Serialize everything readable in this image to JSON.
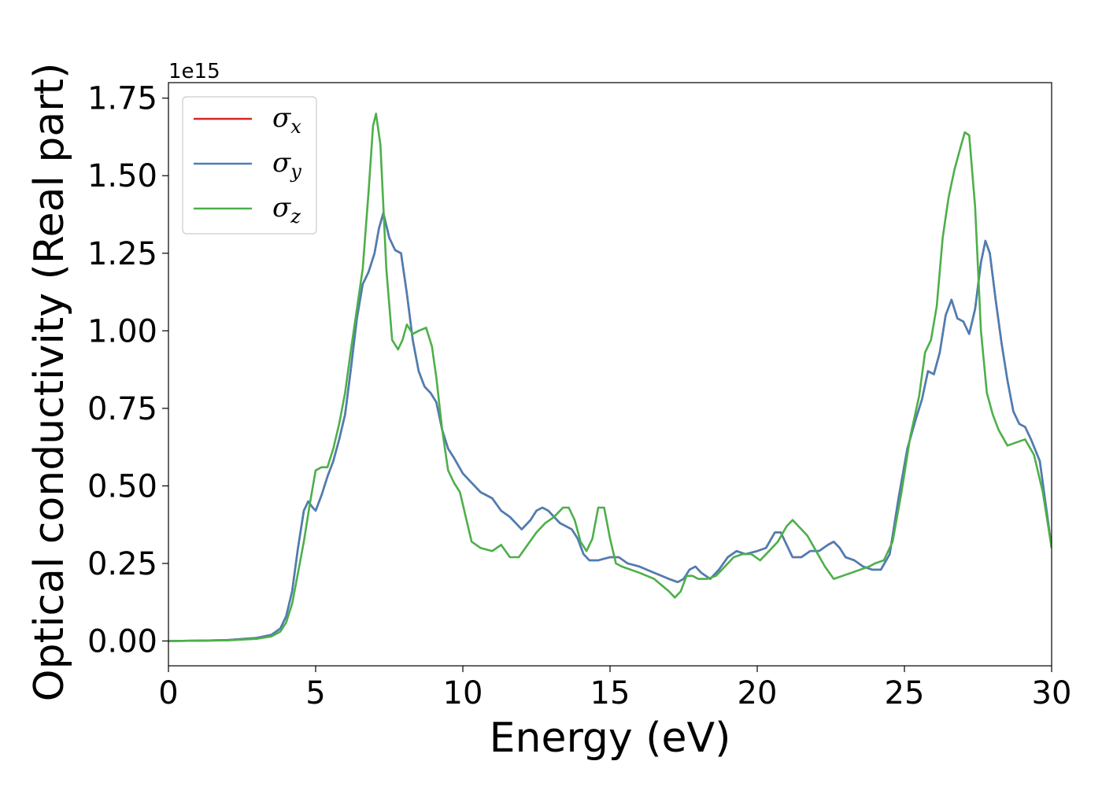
{
  "chart_data": {
    "type": "line",
    "xlabel": "Energy (eV)",
    "ylabel": "Optical conductivity (Real part)",
    "y_offset_text": "1e15",
    "y_scale": 1000000000000000.0,
    "xlim": [
      0,
      30
    ],
    "ylim": [
      -0.08,
      1.8
    ],
    "x_ticks": [
      0,
      5,
      10,
      15,
      20,
      25,
      30
    ],
    "x_tick_labels": [
      "0",
      "5",
      "10",
      "15",
      "20",
      "25",
      "30"
    ],
    "y_ticks": [
      0,
      0.25,
      0.5,
      0.75,
      1.0,
      1.25,
      1.5,
      1.75
    ],
    "y_tick_labels": [
      "0.00",
      "0.25",
      "0.50",
      "0.75",
      "1.00",
      "1.25",
      "1.50",
      "1.75"
    ],
    "grid": false,
    "legend_position": "top-left",
    "series": [
      {
        "name": "σx",
        "legend_base": "σ",
        "legend_sub": "x",
        "color": "#d62728",
        "x": [
          0,
          1,
          2,
          3,
          3.5,
          3.8,
          4.0,
          4.2,
          4.4,
          4.6,
          4.75,
          4.9,
          5.0,
          5.2,
          5.4,
          5.6,
          5.8,
          6.0,
          6.2,
          6.4,
          6.6,
          6.8,
          7.0,
          7.15,
          7.3,
          7.5,
          7.7,
          7.9,
          8.1,
          8.3,
          8.5,
          8.7,
          8.9,
          9.1,
          9.3,
          9.5,
          9.7,
          10.0,
          10.3,
          10.6,
          11.0,
          11.3,
          11.6,
          12.0,
          12.3,
          12.5,
          12.7,
          12.9,
          13.1,
          13.3,
          13.5,
          13.7,
          13.9,
          14.1,
          14.3,
          14.6,
          15.0,
          15.3,
          15.6,
          16.0,
          16.5,
          17.0,
          17.3,
          17.5,
          17.7,
          17.9,
          18.1,
          18.4,
          18.7,
          19.0,
          19.3,
          19.6,
          20.0,
          20.3,
          20.6,
          20.8,
          21.0,
          21.2,
          21.5,
          21.8,
          22.1,
          22.4,
          22.6,
          22.8,
          23.0,
          23.3,
          23.6,
          23.9,
          24.2,
          24.5,
          24.8,
          25.1,
          25.4,
          25.6,
          25.8,
          26.0,
          26.2,
          26.4,
          26.6,
          26.8,
          27.0,
          27.2,
          27.4,
          27.6,
          27.75,
          27.9,
          28.1,
          28.3,
          28.5,
          28.7,
          28.9,
          29.1,
          29.3,
          29.6,
          30.0
        ],
        "y": [
          0,
          0.001,
          0.003,
          0.01,
          0.02,
          0.04,
          0.08,
          0.16,
          0.3,
          0.42,
          0.45,
          0.43,
          0.42,
          0.47,
          0.53,
          0.58,
          0.65,
          0.73,
          0.88,
          1.04,
          1.15,
          1.19,
          1.25,
          1.33,
          1.38,
          1.3,
          1.26,
          1.25,
          1.12,
          0.97,
          0.87,
          0.82,
          0.8,
          0.77,
          0.68,
          0.62,
          0.59,
          0.54,
          0.51,
          0.48,
          0.46,
          0.42,
          0.4,
          0.36,
          0.39,
          0.42,
          0.43,
          0.42,
          0.4,
          0.38,
          0.37,
          0.36,
          0.33,
          0.28,
          0.26,
          0.26,
          0.27,
          0.27,
          0.25,
          0.24,
          0.22,
          0.2,
          0.19,
          0.2,
          0.23,
          0.24,
          0.22,
          0.2,
          0.23,
          0.27,
          0.29,
          0.28,
          0.29,
          0.3,
          0.35,
          0.35,
          0.31,
          0.27,
          0.27,
          0.29,
          0.29,
          0.31,
          0.32,
          0.3,
          0.27,
          0.26,
          0.24,
          0.23,
          0.23,
          0.28,
          0.46,
          0.62,
          0.72,
          0.78,
          0.87,
          0.86,
          0.93,
          1.05,
          1.1,
          1.04,
          1.03,
          0.99,
          1.07,
          1.22,
          1.29,
          1.25,
          1.1,
          0.96,
          0.84,
          0.74,
          0.7,
          0.69,
          0.65,
          0.58,
          0.3
        ]
      },
      {
        "name": "σy",
        "legend_base": "σ",
        "legend_sub": "y",
        "color": "#4a7fb5",
        "x": [
          0,
          1,
          2,
          3,
          3.5,
          3.8,
          4.0,
          4.2,
          4.4,
          4.6,
          4.75,
          4.9,
          5.0,
          5.2,
          5.4,
          5.6,
          5.8,
          6.0,
          6.2,
          6.4,
          6.6,
          6.8,
          7.0,
          7.15,
          7.3,
          7.5,
          7.7,
          7.9,
          8.1,
          8.3,
          8.5,
          8.7,
          8.9,
          9.1,
          9.3,
          9.5,
          9.7,
          10.0,
          10.3,
          10.6,
          11.0,
          11.3,
          11.6,
          12.0,
          12.3,
          12.5,
          12.7,
          12.9,
          13.1,
          13.3,
          13.5,
          13.7,
          13.9,
          14.1,
          14.3,
          14.6,
          15.0,
          15.3,
          15.6,
          16.0,
          16.5,
          17.0,
          17.3,
          17.5,
          17.7,
          17.9,
          18.1,
          18.4,
          18.7,
          19.0,
          19.3,
          19.6,
          20.0,
          20.3,
          20.6,
          20.8,
          21.0,
          21.2,
          21.5,
          21.8,
          22.1,
          22.4,
          22.6,
          22.8,
          23.0,
          23.3,
          23.6,
          23.9,
          24.2,
          24.5,
          24.8,
          25.1,
          25.4,
          25.6,
          25.8,
          26.0,
          26.2,
          26.4,
          26.6,
          26.8,
          27.0,
          27.2,
          27.4,
          27.6,
          27.75,
          27.9,
          28.1,
          28.3,
          28.5,
          28.7,
          28.9,
          29.1,
          29.3,
          29.6,
          30.0
        ],
        "y": [
          0,
          0.001,
          0.003,
          0.01,
          0.02,
          0.04,
          0.08,
          0.16,
          0.3,
          0.42,
          0.45,
          0.43,
          0.42,
          0.47,
          0.53,
          0.58,
          0.65,
          0.73,
          0.88,
          1.04,
          1.15,
          1.19,
          1.25,
          1.33,
          1.38,
          1.3,
          1.26,
          1.25,
          1.12,
          0.97,
          0.87,
          0.82,
          0.8,
          0.77,
          0.68,
          0.62,
          0.59,
          0.54,
          0.51,
          0.48,
          0.46,
          0.42,
          0.4,
          0.36,
          0.39,
          0.42,
          0.43,
          0.42,
          0.4,
          0.38,
          0.37,
          0.36,
          0.33,
          0.28,
          0.26,
          0.26,
          0.27,
          0.27,
          0.25,
          0.24,
          0.22,
          0.2,
          0.19,
          0.2,
          0.23,
          0.24,
          0.22,
          0.2,
          0.23,
          0.27,
          0.29,
          0.28,
          0.29,
          0.3,
          0.35,
          0.35,
          0.31,
          0.27,
          0.27,
          0.29,
          0.29,
          0.31,
          0.32,
          0.3,
          0.27,
          0.26,
          0.24,
          0.23,
          0.23,
          0.28,
          0.46,
          0.62,
          0.72,
          0.78,
          0.87,
          0.86,
          0.93,
          1.05,
          1.1,
          1.04,
          1.03,
          0.99,
          1.07,
          1.22,
          1.29,
          1.25,
          1.1,
          0.96,
          0.84,
          0.74,
          0.7,
          0.69,
          0.65,
          0.58,
          0.3
        ]
      },
      {
        "name": "σz",
        "legend_base": "σ",
        "legend_sub": "z",
        "color": "#4daf4a",
        "x": [
          0,
          1,
          2,
          3,
          3.5,
          3.8,
          4.0,
          4.2,
          4.4,
          4.6,
          4.8,
          5.0,
          5.2,
          5.4,
          5.6,
          5.8,
          6.0,
          6.2,
          6.4,
          6.6,
          6.8,
          6.95,
          7.05,
          7.2,
          7.4,
          7.6,
          7.8,
          7.95,
          8.1,
          8.3,
          8.5,
          8.75,
          8.95,
          9.1,
          9.3,
          9.5,
          9.7,
          9.9,
          10.1,
          10.3,
          10.6,
          11.0,
          11.3,
          11.6,
          11.9,
          12.2,
          12.5,
          12.8,
          13.1,
          13.4,
          13.6,
          13.8,
          14.0,
          14.2,
          14.4,
          14.6,
          14.8,
          15.0,
          15.2,
          15.4,
          15.7,
          16.0,
          16.5,
          17.0,
          17.2,
          17.4,
          17.6,
          17.8,
          18.0,
          18.3,
          18.6,
          18.9,
          19.2,
          19.5,
          19.8,
          20.1,
          20.4,
          20.7,
          21.0,
          21.2,
          21.4,
          21.7,
          22.0,
          22.3,
          22.6,
          22.9,
          23.2,
          23.5,
          23.8,
          24.0,
          24.3,
          24.6,
          24.9,
          25.2,
          25.5,
          25.7,
          25.9,
          26.1,
          26.3,
          26.5,
          26.7,
          26.9,
          27.05,
          27.2,
          27.4,
          27.6,
          27.8,
          28.0,
          28.2,
          28.5,
          28.8,
          29.1,
          29.4,
          29.7,
          30.0
        ],
        "y": [
          0,
          0.001,
          0.002,
          0.007,
          0.015,
          0.03,
          0.06,
          0.12,
          0.22,
          0.32,
          0.44,
          0.55,
          0.56,
          0.56,
          0.62,
          0.7,
          0.8,
          0.94,
          1.07,
          1.2,
          1.45,
          1.66,
          1.7,
          1.6,
          1.2,
          0.97,
          0.94,
          0.97,
          1.02,
          0.99,
          1.0,
          1.01,
          0.95,
          0.85,
          0.68,
          0.55,
          0.51,
          0.48,
          0.4,
          0.32,
          0.3,
          0.29,
          0.31,
          0.27,
          0.27,
          0.31,
          0.35,
          0.38,
          0.4,
          0.43,
          0.43,
          0.39,
          0.32,
          0.29,
          0.33,
          0.43,
          0.43,
          0.33,
          0.25,
          0.24,
          0.23,
          0.22,
          0.2,
          0.16,
          0.14,
          0.16,
          0.21,
          0.21,
          0.2,
          0.2,
          0.21,
          0.24,
          0.27,
          0.28,
          0.28,
          0.26,
          0.29,
          0.32,
          0.37,
          0.39,
          0.37,
          0.34,
          0.29,
          0.24,
          0.2,
          0.21,
          0.22,
          0.23,
          0.24,
          0.25,
          0.26,
          0.32,
          0.48,
          0.66,
          0.79,
          0.93,
          0.97,
          1.08,
          1.3,
          1.43,
          1.52,
          1.59,
          1.64,
          1.63,
          1.4,
          1.0,
          0.8,
          0.73,
          0.68,
          0.63,
          0.64,
          0.65,
          0.6,
          0.48,
          0.3
        ]
      }
    ]
  }
}
